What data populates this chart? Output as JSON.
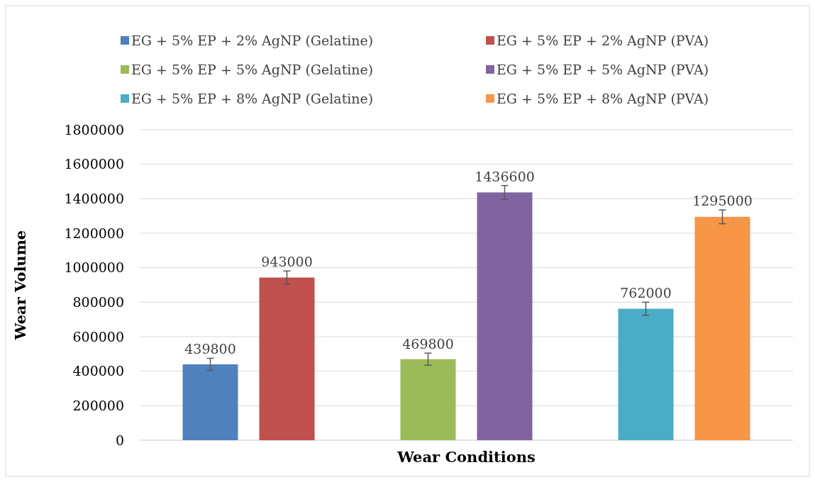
{
  "chart_data": {
    "type": "bar",
    "xlabel": "Wear Conditions",
    "ylabel": "Wear Volume",
    "categories": [
      null,
      null,
      null
    ],
    "series": [
      {
        "name": "EG + 5% EP + 2% AgNP (Gelatine)",
        "color": "#4f81bd",
        "values": [
          439800,
          null,
          null
        ],
        "errors": [
          35000,
          null,
          null
        ]
      },
      {
        "name": "EG + 5% EP + 2% AgNP (PVA)",
        "color": "#c0504d",
        "values": [
          943000,
          null,
          null
        ],
        "errors": [
          38000,
          null,
          null
        ]
      },
      {
        "name": "EG + 5% EP + 5% AgNP (Gelatine)",
        "color": "#9bbb59",
        "values": [
          null,
          469800,
          null
        ],
        "errors": [
          null,
          35000,
          null
        ]
      },
      {
        "name": "EG + 5% EP + 5% AgNP (PVA)",
        "color": "#8064a2",
        "values": [
          null,
          1436600,
          null
        ],
        "errors": [
          null,
          40000,
          null
        ]
      },
      {
        "name": "EG + 5% EP + 8% AgNP (Gelatine)",
        "color": "#4bacc6",
        "values": [
          null,
          null,
          762000
        ],
        "errors": [
          null,
          null,
          38000
        ]
      },
      {
        "name": "EG + 5% EP + 8% AgNP (PVA)",
        "color": "#f79646",
        "values": [
          null,
          null,
          1295000
        ],
        "errors": [
          null,
          null,
          40000
        ]
      }
    ],
    "ylim": [
      0,
      1800000
    ],
    "yticks": [
      0,
      200000,
      400000,
      600000,
      800000,
      1000000,
      1200000,
      1400000,
      1600000,
      1800000
    ],
    "grid": "y",
    "legend": "top",
    "data_labels": true
  }
}
